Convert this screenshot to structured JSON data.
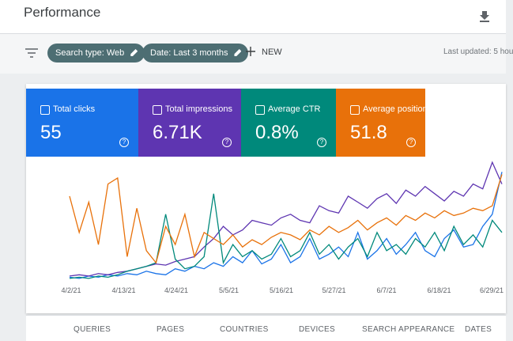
{
  "header": {
    "title": "Performance"
  },
  "filters": {
    "chips": [
      "Search type: Web",
      "Date: Last 3 months"
    ],
    "new": "NEW",
    "updated": "Last updated: 5 hou"
  },
  "cards": [
    {
      "label": "Total clicks",
      "value": "55",
      "color": "#1a73e8"
    },
    {
      "label": "Total impressions",
      "value": "6.71K",
      "color": "#5e35b1"
    },
    {
      "label": "Average CTR",
      "value": "0.8%",
      "color": "#00897b"
    },
    {
      "label": "Average position",
      "value": "51.8",
      "color": "#e8710a"
    }
  ],
  "chart": {
    "type": "line",
    "xticks": [
      "4/2/21",
      "4/13/21",
      "4/24/21",
      "5/5/21",
      "5/16/21",
      "5/27/21",
      "6/7/21",
      "6/18/21",
      "6/29/21"
    ],
    "ylim": [
      0,
      100
    ],
    "series": [
      {
        "color": "#1a73e8",
        "values": [
          3,
          2,
          4,
          3,
          5,
          4,
          6,
          5,
          8,
          6,
          5,
          10,
          8,
          12,
          10,
          15,
          12,
          20,
          15,
          25,
          14,
          18,
          30,
          15,
          20,
          35,
          18,
          22,
          28,
          20,
          40,
          18,
          25,
          35,
          22,
          30,
          40,
          25,
          20,
          35,
          42,
          28,
          30,
          45,
          55,
          90
        ]
      },
      {
        "color": "#5e35b1",
        "values": [
          4,
          5,
          4,
          6,
          5,
          7,
          8,
          10,
          12,
          14,
          13,
          16,
          18,
          20,
          28,
          35,
          45,
          38,
          42,
          50,
          48,
          46,
          52,
          55,
          50,
          48,
          62,
          58,
          56,
          70,
          65,
          60,
          68,
          72,
          64,
          75,
          70,
          78,
          72,
          66,
          74,
          70,
          80,
          76,
          98,
          80
        ]
      },
      {
        "color": "#00897b",
        "values": [
          2,
          3,
          2,
          4,
          3,
          5,
          8,
          10,
          12,
          15,
          55,
          18,
          10,
          12,
          20,
          72,
          15,
          30,
          20,
          25,
          18,
          22,
          35,
          20,
          25,
          40,
          22,
          30,
          18,
          28,
          35,
          20,
          40,
          25,
          30,
          22,
          35,
          28,
          40,
          25,
          45,
          30,
          38,
          28,
          50,
          40
        ]
      },
      {
        "color": "#e8710a",
        "values": [
          70,
          40,
          65,
          30,
          80,
          85,
          20,
          60,
          25,
          15,
          45,
          30,
          55,
          20,
          40,
          35,
          30,
          38,
          28,
          34,
          30,
          36,
          40,
          38,
          34,
          42,
          38,
          45,
          40,
          44,
          50,
          42,
          48,
          52,
          46,
          54,
          50,
          56,
          52,
          58,
          54,
          56,
          60,
          58,
          62,
          88
        ]
      }
    ]
  },
  "tabs": [
    "QUERIES",
    "PAGES",
    "COUNTRIES",
    "DEVICES",
    "SEARCH APPEARANCE",
    "DATES"
  ]
}
